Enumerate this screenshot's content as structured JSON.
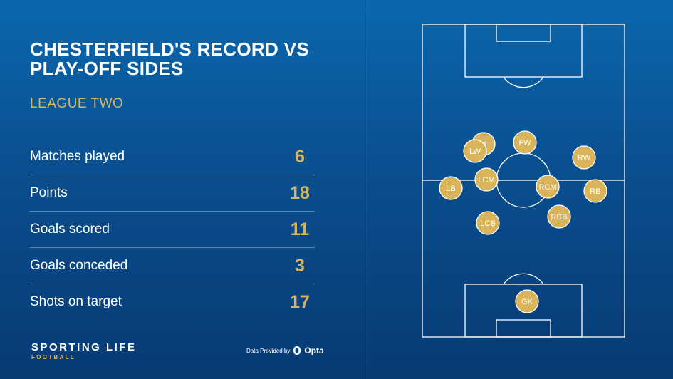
{
  "header": {
    "title": "CHESTERFIELD'S RECORD VS PLAY-OFF SIDES",
    "subtitle": "LEAGUE TWO"
  },
  "stats": [
    {
      "label": "Matches played",
      "value": "6"
    },
    {
      "label": "Points",
      "value": "18"
    },
    {
      "label": "Goals scored",
      "value": "11"
    },
    {
      "label": "Goals conceded",
      "value": "3"
    },
    {
      "label": "Shots on target",
      "value": "17"
    }
  ],
  "branding": {
    "name": "SPORTING LIFE",
    "sub": "FOOTBALL",
    "credit": "Data Provided by",
    "provider": "Opta"
  },
  "players": [
    {
      "label": "M"
    },
    {
      "label": "LW"
    },
    {
      "label": "FW"
    },
    {
      "label": "RW"
    },
    {
      "label": "LB"
    },
    {
      "label": "LCM"
    },
    {
      "label": "RCM"
    },
    {
      "label": "RB"
    },
    {
      "label": "LCB"
    },
    {
      "label": "RCB"
    },
    {
      "label": "GK"
    }
  ],
  "colors": {
    "accent": "#d9b45a",
    "background": "#0a4f8f"
  }
}
